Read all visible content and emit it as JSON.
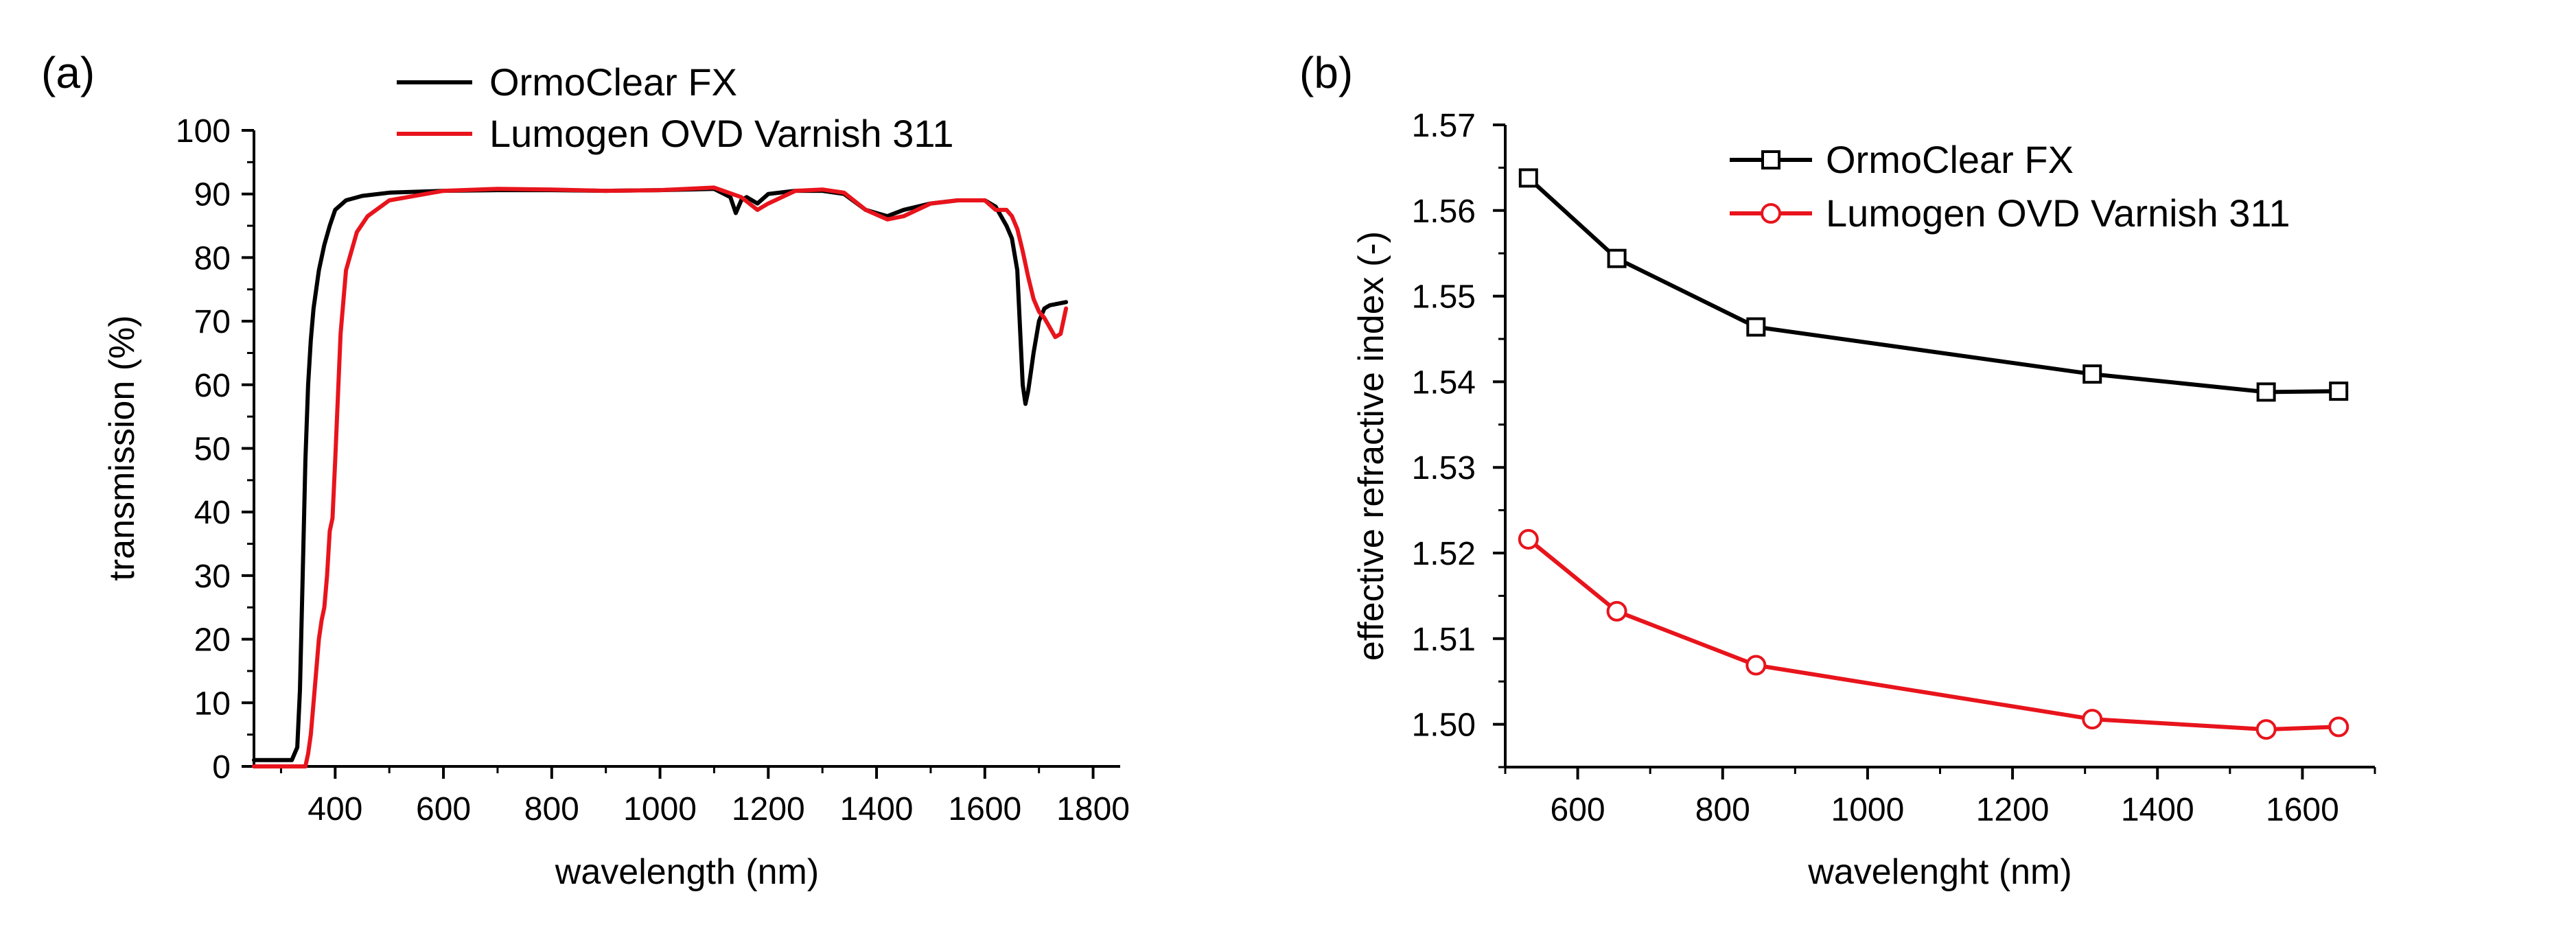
{
  "chart_data": [
    {
      "panel_label": "(a)",
      "type": "line",
      "xlabel": "wavelength (nm)",
      "ylabel": "transmission  (%)",
      "xlim": [
        250,
        1850
      ],
      "ylim": [
        0,
        100
      ],
      "x_ticks": [
        400,
        600,
        800,
        1000,
        1200,
        1400,
        1600,
        1800
      ],
      "x_tick_labels": [
        "400",
        "600",
        "800",
        "1000",
        "1200",
        "1400",
        "1600",
        "1800"
      ],
      "y_ticks": [
        0,
        10,
        20,
        30,
        40,
        50,
        60,
        70,
        80,
        90,
        100
      ],
      "y_tick_labels": [
        "0",
        "10",
        "20",
        "30",
        "40",
        "50",
        "60",
        "70",
        "80",
        "90",
        "100"
      ],
      "legend_position": "top",
      "series": [
        {
          "name": "OrmoClear FX",
          "color": "#000000",
          "x": [
            250,
            300,
            320,
            330,
            335,
            340,
            345,
            350,
            355,
            360,
            370,
            380,
            390,
            400,
            420,
            450,
            500,
            600,
            700,
            800,
            900,
            1000,
            1100,
            1130,
            1140,
            1150,
            1160,
            1180,
            1200,
            1250,
            1300,
            1340,
            1380,
            1420,
            1450,
            1500,
            1550,
            1600,
            1620,
            1640,
            1650,
            1660,
            1670,
            1675,
            1680,
            1685,
            1690,
            1700,
            1710,
            1720,
            1750
          ],
          "y": [
            1,
            1,
            1,
            3,
            12,
            30,
            48,
            60,
            67,
            72,
            78,
            82,
            85,
            87.5,
            89,
            89.7,
            90.2,
            90.5,
            90.6,
            90.6,
            90.5,
            90.6,
            90.8,
            89.5,
            87,
            89,
            89.5,
            88.5,
            90,
            90.5,
            90.5,
            90,
            87.5,
            86.5,
            87.5,
            88.5,
            89,
            89,
            88,
            85,
            83,
            78,
            60,
            57,
            59,
            62,
            65,
            70,
            72,
            72.5,
            73
          ]
        },
        {
          "name": "Lumogen OVD Varnish 311",
          "color": "#e8141c",
          "x": [
            250,
            330,
            345,
            350,
            355,
            360,
            365,
            370,
            375,
            380,
            385,
            390,
            395,
            400,
            410,
            420,
            440,
            460,
            500,
            600,
            700,
            800,
            900,
            1000,
            1100,
            1150,
            1180,
            1200,
            1250,
            1300,
            1340,
            1380,
            1420,
            1450,
            1500,
            1550,
            1600,
            1620,
            1640,
            1650,
            1660,
            1670,
            1680,
            1690,
            1700,
            1710,
            1720,
            1730,
            1740,
            1750
          ],
          "y": [
            0,
            0,
            0,
            2,
            5,
            10,
            15,
            20,
            23,
            25,
            30,
            37,
            39,
            48,
            68,
            78,
            84,
            86.5,
            89,
            90.5,
            90.8,
            90.7,
            90.5,
            90.6,
            91,
            89.5,
            87.5,
            88.5,
            90.5,
            90.7,
            90.2,
            87.5,
            86,
            86.5,
            88.5,
            89,
            89,
            87.5,
            87.5,
            86.5,
            84.5,
            81,
            77,
            73.5,
            71.5,
            70.5,
            69,
            67.5,
            68,
            72
          ]
        }
      ]
    },
    {
      "panel_label": "(b)",
      "type": "line",
      "xlabel": "wavelenght (nm)",
      "ylabel": "effective refractive index  (-)",
      "xlim": [
        500,
        1700
      ],
      "ylim": [
        1.495,
        1.57
      ],
      "x_ticks": [
        600,
        800,
        1000,
        1200,
        1400,
        1600
      ],
      "x_tick_labels": [
        "600",
        "800",
        "1000",
        "1200",
        "1400",
        "1600"
      ],
      "y_ticks": [
        1.5,
        1.51,
        1.52,
        1.53,
        1.54,
        1.55,
        1.56,
        1.57
      ],
      "y_tick_labels": [
        "1.50",
        "1.51",
        "1.52",
        "1.53",
        "1.54",
        "1.55",
        "1.56",
        "1.57"
      ],
      "legend_position": "top-right",
      "series": [
        {
          "name": "OrmoClear FX",
          "color": "#000000",
          "marker": "square",
          "x": [
            532,
            654,
            846,
            1310,
            1550,
            1650
          ],
          "y": [
            1.5638,
            1.5544,
            1.5464,
            1.5409,
            1.5388,
            1.5389
          ]
        },
        {
          "name": "Lumogen OVD Varnish 311",
          "color": "#e8141c",
          "marker": "circle",
          "x": [
            532,
            654,
            846,
            1310,
            1550,
            1650
          ],
          "y": [
            1.5216,
            1.5132,
            1.5069,
            1.5006,
            1.4994,
            1.4997
          ]
        }
      ]
    }
  ]
}
